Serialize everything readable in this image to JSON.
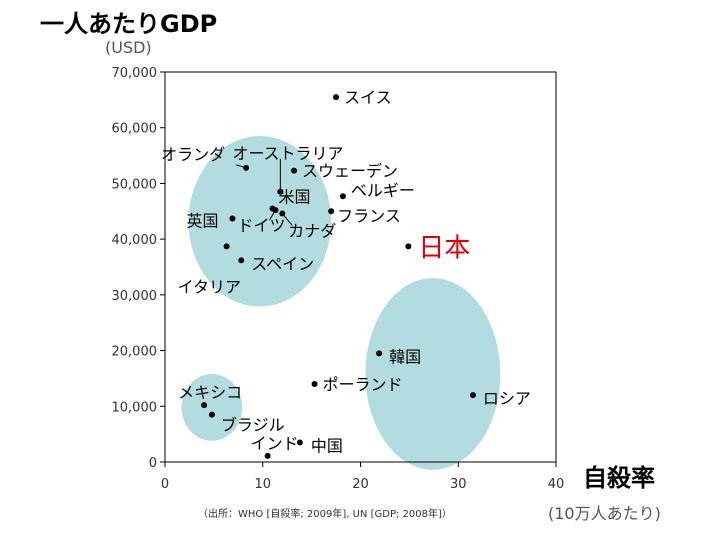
{
  "ylabel_title": "一人あたりGDP",
  "ylabel_unit": "(USD)",
  "xlabel_title": "自殺率",
  "xlabel_unit": "(10万人あたり)",
  "source": "（出所：WHO [自殺率; 2009年], UN [GDP; 2008年]）",
  "chart_data": {
    "type": "scatter",
    "xlim": [
      0,
      40
    ],
    "ylim": [
      0,
      70000
    ],
    "x_ticks": [
      "0",
      "10",
      "20",
      "30",
      "40"
    ],
    "y_ticks": [
      "0",
      "10,000",
      "20,000",
      "30,000",
      "40,000",
      "50,000",
      "60,000",
      "70,000"
    ],
    "grid": false,
    "points": [
      {
        "label": "スイス",
        "x": 17.5,
        "y": 65500,
        "color": "#000000"
      },
      {
        "label": "オーストラリア",
        "x": 11.8,
        "y": 48500,
        "color": "#000000"
      },
      {
        "label": "オランダ",
        "x": 8.3,
        "y": 52800,
        "color": "#000000"
      },
      {
        "label": "スウェーデン",
        "x": 13.2,
        "y": 52300,
        "color": "#000000"
      },
      {
        "label": "ベルギー",
        "x": 18.2,
        "y": 47700,
        "color": "#000000"
      },
      {
        "label": "米国",
        "x": 11.0,
        "y": 45500,
        "color": "#000000"
      },
      {
        "label": "フランス",
        "x": 17.0,
        "y": 45000,
        "color": "#000000"
      },
      {
        "label": "英国",
        "x": 6.9,
        "y": 43700,
        "color": "#000000"
      },
      {
        "label": "ドイツ",
        "x": 11.3,
        "y": 45200,
        "color": "#000000"
      },
      {
        "label": "カナダ",
        "x": 12.0,
        "y": 44600,
        "color": "#000000"
      },
      {
        "label": "日本",
        "x": 24.9,
        "y": 38700,
        "color": "#e00000"
      },
      {
        "label": "イタリア",
        "x": 6.3,
        "y": 38700,
        "color": "#000000"
      },
      {
        "label": "スペイン",
        "x": 7.8,
        "y": 36200,
        "color": "#000000"
      },
      {
        "label": "韓国",
        "x": 21.9,
        "y": 19500,
        "color": "#000000"
      },
      {
        "label": "ポーランド",
        "x": 15.3,
        "y": 14000,
        "color": "#000000"
      },
      {
        "label": "ロシア",
        "x": 31.5,
        "y": 12000,
        "color": "#000000"
      },
      {
        "label": "メキシコ",
        "x": 4.0,
        "y": 10200,
        "color": "#000000"
      },
      {
        "label": "ブラジル",
        "x": 4.8,
        "y": 8500,
        "color": "#000000"
      },
      {
        "label": "インド",
        "x": 10.5,
        "y": 1100,
        "color": "#000000"
      },
      {
        "label": "中国",
        "x": 13.8,
        "y": 3500,
        "color": "#000000"
      }
    ],
    "clusters": [
      {
        "x": 9.7,
        "y": 43200,
        "rx": 7.3,
        "ry": 15300
      },
      {
        "x": 27.4,
        "y": 15800,
        "rx": 6.9,
        "ry": 17200
      },
      {
        "x": 4.8,
        "y": 9800,
        "rx": 3.1,
        "ry": 6000
      }
    ],
    "cluster_color": "#b2dcdf"
  }
}
